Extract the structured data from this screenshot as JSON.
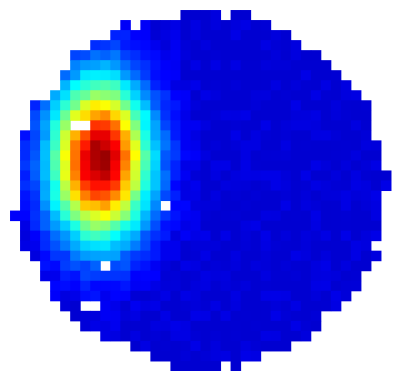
{
  "chart_data": {
    "type": "heatmap",
    "title": "",
    "xlabel": "",
    "ylabel": "",
    "grid": false,
    "legend": "none",
    "colormap": "jet",
    "background": "#ffffff",
    "value_range": [
      0,
      1
    ],
    "field": {
      "disk": {
        "cx": 0.5,
        "cy": 0.51,
        "rx": 0.46,
        "ry": 0.48
      },
      "hotspot": {
        "cx": 0.25,
        "cy": 0.43,
        "sx": 0.085,
        "sy": 0.15,
        "peak": 0.97
      }
    },
    "grid_shape": {
      "cols": 40,
      "rows": 37
    },
    "holes": [
      [
        7,
        12
      ],
      [
        8,
        12
      ],
      [
        16,
        20
      ],
      [
        10,
        26
      ],
      [
        8,
        30
      ],
      [
        9,
        30
      ],
      [
        11,
        34
      ],
      [
        12,
        34
      ]
    ],
    "colors": {
      "low": "#0000c8",
      "mid_low": "#0070ff",
      "mid": "#00d0ff",
      "green": "#40e000",
      "yellow": "#ffff00",
      "orange": "#ff9000",
      "high": "#ff2a00"
    }
  }
}
